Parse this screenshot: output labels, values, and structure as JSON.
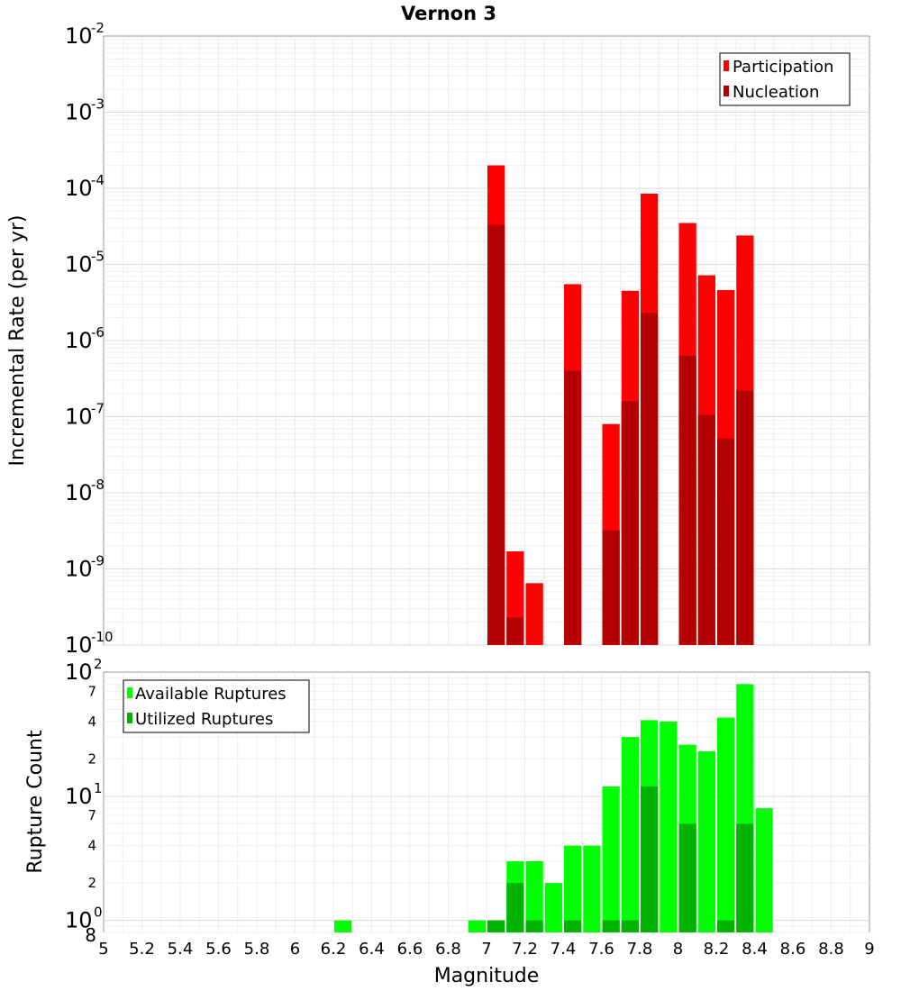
{
  "chart_data": [
    {
      "type": "bar",
      "title": "Vernon 3",
      "xlabel": "",
      "ylabel": "Incremental Rate (per yr)",
      "yscale": "log",
      "xlim": [
        5,
        9
      ],
      "ylim": [
        1e-10,
        0.01
      ],
      "y_tick_labels": [
        {
          "base": "10",
          "exp": "-10"
        },
        {
          "base": "10",
          "exp": "-9"
        },
        {
          "base": "10",
          "exp": "-8"
        },
        {
          "base": "10",
          "exp": "-7"
        },
        {
          "base": "10",
          "exp": "-6"
        },
        {
          "base": "10",
          "exp": "-5"
        },
        {
          "base": "10",
          "exp": "-4"
        },
        {
          "base": "10",
          "exp": "-3"
        },
        {
          "base": "10",
          "exp": "-2"
        }
      ],
      "legend": [
        "Participation",
        "Nucleation"
      ],
      "legend_position": "top-right",
      "colors": {
        "participation": "#ff0000",
        "nucleation": "#b30000"
      },
      "bin_width": 0.1,
      "series": [
        {
          "name": "Participation",
          "x": [
            7.05,
            7.15,
            7.25,
            7.45,
            7.65,
            7.75,
            7.85,
            8.05,
            8.15,
            8.25,
            8.35
          ],
          "values": [
            0.0002,
            1.7e-09,
            6.5e-10,
            5.5e-06,
            8e-08,
            4.5e-06,
            8.5e-05,
            3.5e-05,
            7.2e-06,
            4.6e-06,
            2.4e-05
          ]
        },
        {
          "name": "Nucleation",
          "x": [
            7.05,
            7.15,
            7.45,
            7.65,
            7.75,
            7.85,
            8.05,
            8.15,
            8.25,
            8.35
          ],
          "values": [
            3.3e-05,
            2.3e-10,
            4e-07,
            3.2e-09,
            1.6e-07,
            2.3e-06,
            6.3e-07,
            1.05e-07,
            5.2e-08,
            2.2e-07
          ]
        }
      ]
    },
    {
      "type": "bar",
      "title": "",
      "xlabel": "Magnitude",
      "ylabel": "Rupture Count",
      "yscale": "log",
      "xlim": [
        5,
        9
      ],
      "ylim": [
        0.8,
        100
      ],
      "x_ticks": [
        "5",
        "5.2",
        "5.4",
        "5.6",
        "5.8",
        "6",
        "6.2",
        "6.4",
        "6.6",
        "6.8",
        "7",
        "7.2",
        "7.4",
        "7.6",
        "7.8",
        "8",
        "8.2",
        "8.4",
        "8.6",
        "8.8",
        "9"
      ],
      "y_major_ticks": [
        {
          "base": "10",
          "exp": "0"
        },
        {
          "base": "10",
          "exp": "1"
        },
        {
          "base": "10",
          "exp": "2"
        }
      ],
      "y_minor_ticks": [
        {
          "label": "8",
          "value": 0.8
        },
        {
          "label": "2",
          "value": 2
        },
        {
          "label": "4",
          "value": 4
        },
        {
          "label": "7",
          "value": 7
        },
        {
          "label": "2",
          "value": 20
        },
        {
          "label": "4",
          "value": 40
        },
        {
          "label": "7",
          "value": 70
        }
      ],
      "legend": [
        "Available Ruptures",
        "Utilized Ruptures"
      ],
      "legend_position": "top-left",
      "colors": {
        "available": "#00ff00",
        "utilized": "#00b300"
      },
      "bin_width": 0.1,
      "series": [
        {
          "name": "Available Ruptures",
          "x": [
            6.25,
            6.95,
            7.05,
            7.15,
            7.25,
            7.35,
            7.45,
            7.55,
            7.65,
            7.75,
            7.85,
            7.95,
            8.05,
            8.15,
            8.25,
            8.35,
            8.45
          ],
          "values": [
            1,
            1,
            1,
            3,
            3,
            2,
            4,
            4,
            12,
            30,
            41,
            40,
            26,
            23,
            43,
            80,
            8
          ]
        },
        {
          "name": "Utilized Ruptures",
          "x": [
            7.05,
            7.15,
            7.25,
            7.45,
            7.65,
            7.75,
            7.85,
            8.05,
            8.25,
            8.35
          ],
          "values": [
            1,
            2,
            1,
            1,
            1,
            1,
            12,
            6,
            1,
            6
          ]
        }
      ]
    }
  ]
}
